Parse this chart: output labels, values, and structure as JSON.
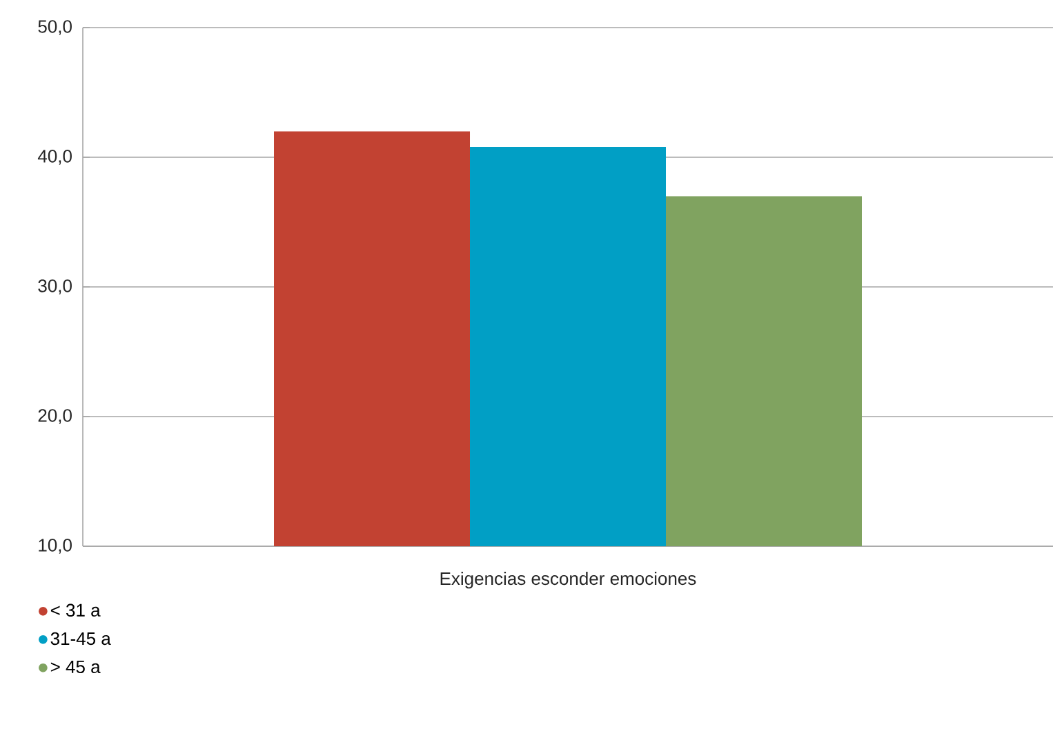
{
  "chart_data": {
    "type": "bar",
    "categories": [
      "Exigencias esconder emociones"
    ],
    "series": [
      {
        "name": "< 31 a",
        "color": "#c24232",
        "values": [
          42.0
        ]
      },
      {
        "name": "31-45 a",
        "color": "#019fc5",
        "values": [
          40.8
        ]
      },
      {
        "name": "> 45 a",
        "color": "#80a360",
        "values": [
          37.0
        ]
      }
    ],
    "ylim": [
      10,
      50
    ],
    "yticks": [
      {
        "value": 10,
        "label": "10,0"
      },
      {
        "value": 20,
        "label": "20,0"
      },
      {
        "value": 30,
        "label": "30,0"
      },
      {
        "value": 40,
        "label": "40,0"
      },
      {
        "value": 50,
        "label": "50,0"
      }
    ],
    "grid": "y",
    "legend": "bottom left",
    "marker": "circle"
  }
}
